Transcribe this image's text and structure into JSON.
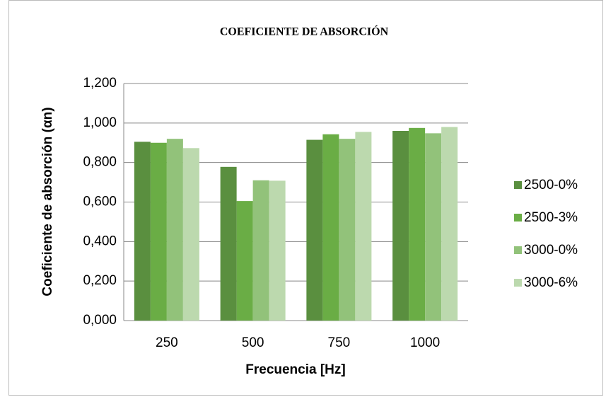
{
  "chart_data": {
    "type": "bar",
    "title": "COEFICIENTE DE ABSORCIÓN",
    "x_label": "Frecuencia  [Hz]",
    "y_label": "Coeficiente  de absorción (αn)",
    "categories": [
      "250",
      "500",
      "750",
      "1000"
    ],
    "series": [
      {
        "name": "2500-0%",
        "color": "#5a8f3f",
        "values": [
          0.905,
          0.778,
          0.915,
          0.96
        ]
      },
      {
        "name": "2500-3%",
        "color": "#6aad45",
        "values": [
          0.9,
          0.605,
          0.943,
          0.975
        ]
      },
      {
        "name": "3000-0%",
        "color": "#92c27a",
        "values": [
          0.92,
          0.71,
          0.92,
          0.948
        ]
      },
      {
        "name": "3000-6%",
        "color": "#bcd9ae",
        "values": [
          0.873,
          0.708,
          0.955,
          0.98
        ]
      }
    ],
    "ylim": [
      0,
      1.2
    ],
    "yticks": [
      {
        "value": 0,
        "label": "0,000"
      },
      {
        "value": 0.2,
        "label": "0,200"
      },
      {
        "value": 0.4,
        "label": "0,400"
      },
      {
        "value": 0.6,
        "label": "0,600"
      },
      {
        "value": 0.8,
        "label": "0,800"
      },
      {
        "value": 1,
        "label": "1,000"
      },
      {
        "value": 1.2,
        "label": "1,200"
      }
    ],
    "grid": true,
    "legend": "right"
  }
}
